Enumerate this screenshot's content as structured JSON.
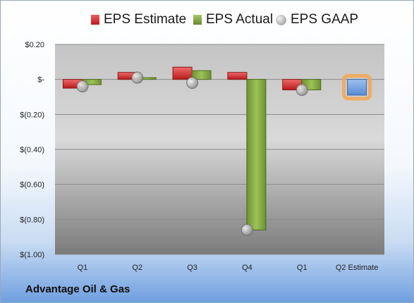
{
  "chart_data": {
    "type": "bar",
    "company": "Advantage Oil & Gas",
    "categories": [
      "Q1",
      "Q2",
      "Q3",
      "Q4",
      "Q1",
      "Q2 Estimate"
    ],
    "ylim": [
      -1.0,
      0.2
    ],
    "yticks": [
      0.2,
      0.0,
      -0.2,
      -0.4,
      -0.6,
      -0.8,
      -1.0
    ],
    "ytick_labels": [
      "$0.20",
      "$-",
      "$(0.20)",
      "$(0.40)",
      "$(0.60)",
      "$(0.80)",
      "$(1.00)"
    ],
    "grid": true,
    "legend_position": "top",
    "series": [
      {
        "name": "EPS Estimate",
        "kind": "bar",
        "color": "#d42a2a",
        "values": [
          -0.05,
          0.04,
          0.07,
          0.04,
          -0.06,
          null
        ]
      },
      {
        "name": "EPS Actual",
        "kind": "bar",
        "color": "#7fa53a",
        "values": [
          -0.03,
          0.01,
          0.05,
          -0.86,
          -0.06,
          null
        ]
      },
      {
        "name": "EPS GAAP",
        "kind": "marker",
        "color": "#a9a9a9",
        "values": [
          -0.04,
          0.01,
          -0.02,
          -0.86,
          -0.06,
          null
        ]
      },
      {
        "name": "Q2 Estimate",
        "kind": "bar",
        "color": "#6a9de0",
        "highlight": "#f5a650",
        "values": [
          null,
          null,
          null,
          null,
          null,
          -0.09
        ]
      }
    ]
  }
}
